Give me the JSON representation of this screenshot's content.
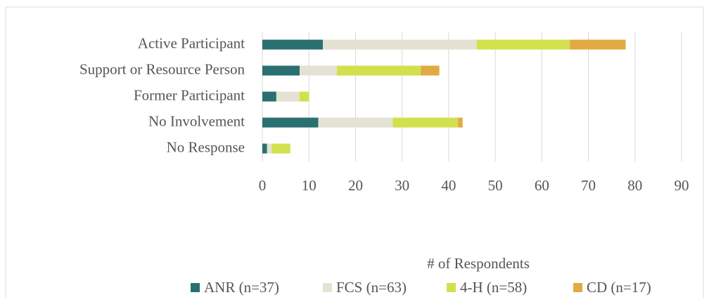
{
  "chart_data": {
    "type": "stacked-bar-horizontal",
    "categories": [
      "Active Participant",
      "Support or Resource Person",
      "Former Participant",
      "No Involvement",
      "No Response"
    ],
    "series": [
      {
        "name": "ANR (n=37)",
        "color": "#2a7070",
        "values": [
          13,
          8,
          3,
          12,
          1
        ]
      },
      {
        "name": "FCS (n=63)",
        "color": "#e4e2d2",
        "values": [
          33,
          8,
          5,
          16,
          1
        ]
      },
      {
        "name": "4-H (n=58)",
        "color": "#d3e04e",
        "values": [
          20,
          18,
          2,
          14,
          4
        ]
      },
      {
        "name": "CD (n=17)",
        "color": "#e1aa42",
        "values": [
          12,
          4,
          0,
          1,
          0
        ]
      }
    ],
    "xlim": [
      0,
      90
    ],
    "xticks": [
      0,
      10,
      20,
      30,
      40,
      50,
      60,
      70,
      80,
      90
    ],
    "x_label": "# of Respondents",
    "grid": true
  }
}
